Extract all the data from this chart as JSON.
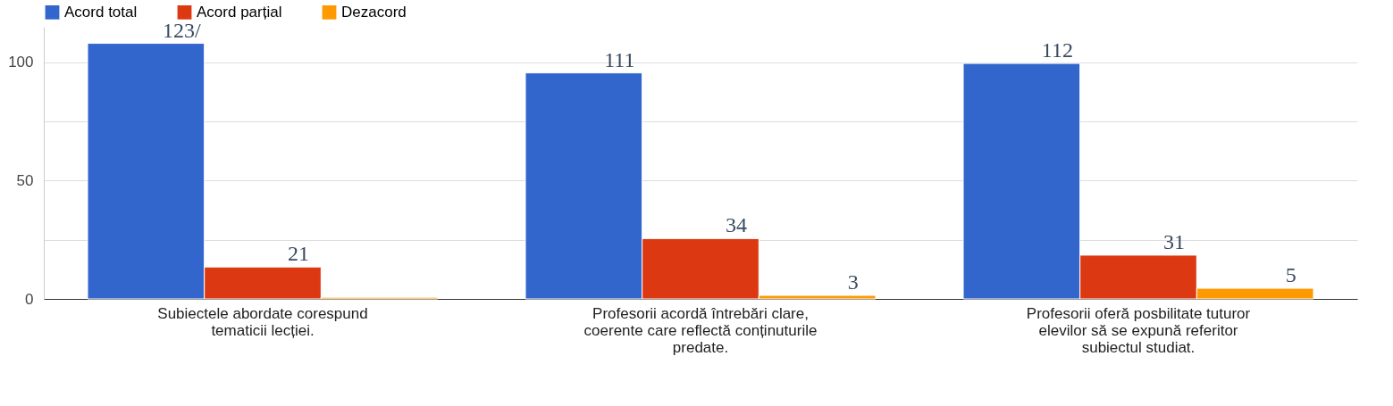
{
  "chart_data": {
    "type": "bar",
    "categories": [
      "Subiectele abordate corespund tematicii lecției.",
      "Profesorii acordă întrebări clare, coerente care reflectă conținuturile predate.",
      "Profesorii oferă posbilitate tuturor elevilor să se expună referitor subiectul studiat."
    ],
    "series": [
      {
        "name": "Acord total",
        "color": "#3366cc",
        "values": [
          108,
          95.5,
          99.5
        ]
      },
      {
        "name": "Acord parțial",
        "color": "#dc3912",
        "values": [
          13.5,
          25.5,
          18.5
        ]
      },
      {
        "name": "Dezacord",
        "color": "#ff9900",
        "values": [
          0.7,
          1.5,
          4.5
        ]
      }
    ],
    "annotations": [
      "123/",
      "21",
      "111",
      "34",
      "3",
      "112",
      "31",
      "5"
    ],
    "ylim": [
      0,
      115
    ],
    "yticks": [
      0,
      {
        "value": 25,
        "label": null
      },
      50,
      {
        "value": 75,
        "label": null
      },
      100
    ],
    "grid": "y",
    "legend": "top left"
  }
}
